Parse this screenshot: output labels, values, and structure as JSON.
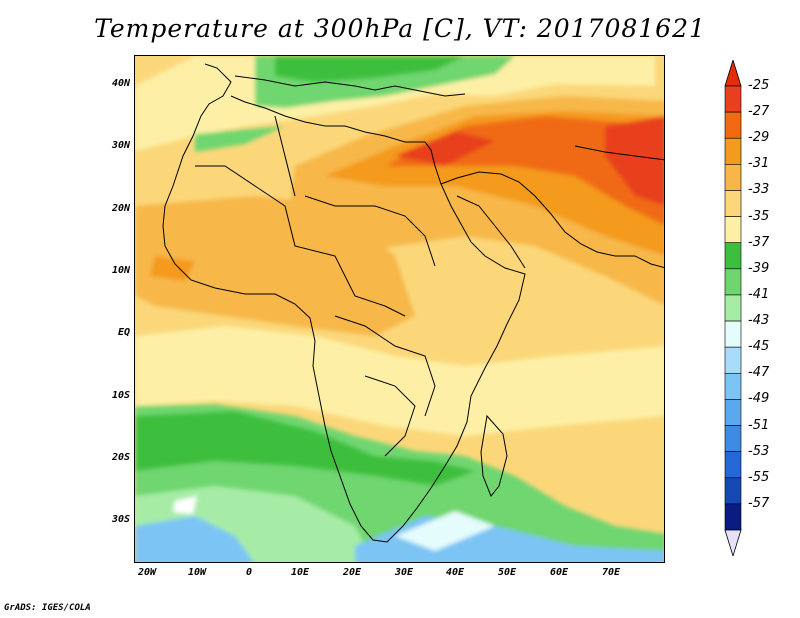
{
  "title": "Temperature at 300hPa [C], VT: 2017081621",
  "credit": "GrADS: IGES/COLA",
  "lat_labels": [
    "40N",
    "30N",
    "20N",
    "10N",
    "EQ",
    "10S",
    "20S",
    "30S"
  ],
  "lon_labels": [
    "20W",
    "10W",
    "0",
    "10E",
    "20E",
    "30E",
    "40E",
    "50E",
    "60E",
    "70E"
  ],
  "colorbar": {
    "labels": [
      "-25",
      "-27",
      "-29",
      "-31",
      "-33",
      "-35",
      "-37",
      "-39",
      "-41",
      "-43",
      "-45",
      "-47",
      "-49",
      "-51",
      "-53",
      "-55",
      "-57"
    ],
    "colors": [
      "#e8401e",
      "#f06a12",
      "#f49a1e",
      "#f7b748",
      "#fbd77a",
      "#fdf0a6",
      "#3cbf3c",
      "#6fd66f",
      "#a6eca6",
      "#e4fcfc",
      "#a8dcf8",
      "#7cc4f4",
      "#5aa8ee",
      "#3c8ce6",
      "#2468d8",
      "#1448b4",
      "#0a1c82"
    ],
    "end_colors": {
      "top": "#e22c0a",
      "bottom": "#e6e0fa"
    }
  }
}
